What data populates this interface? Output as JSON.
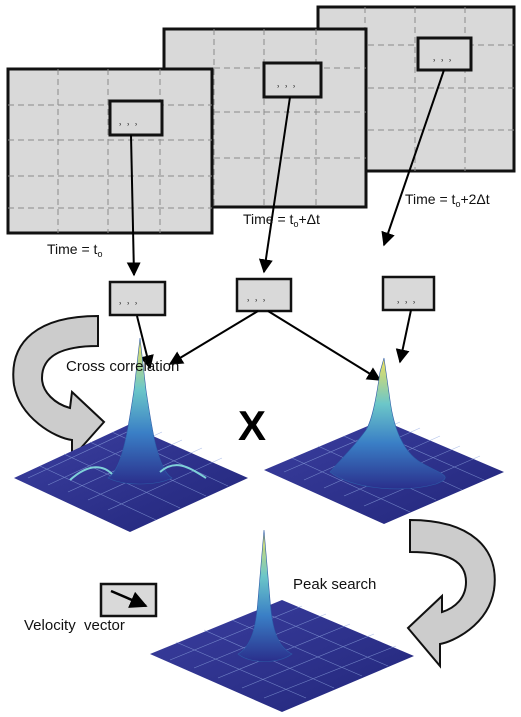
{
  "labels": {
    "time1_prefix": "Time = t",
    "time1_sub": "o",
    "time2_prefix": "Time = t",
    "time2_sub": "o",
    "time2_suffix": "+Δt",
    "time3_prefix": "Time = t",
    "time3_sub": "o",
    "time3_suffix": "+2Δt",
    "cross_correlation": "Cross correlation",
    "multiply_symbol": "X",
    "peak_search": "Peak search",
    "velocity_vector": "Velocity  vector"
  },
  "colors": {
    "frame_fill": "#d9d9d9",
    "frame_border": "#111111",
    "grid_dash": "#8c8c8c",
    "curved_arrow_fill": "#cccccc",
    "surface_base": "#2a2f8c",
    "surface_mid": "#5aa7d6",
    "surface_peak": "#f0e060"
  }
}
